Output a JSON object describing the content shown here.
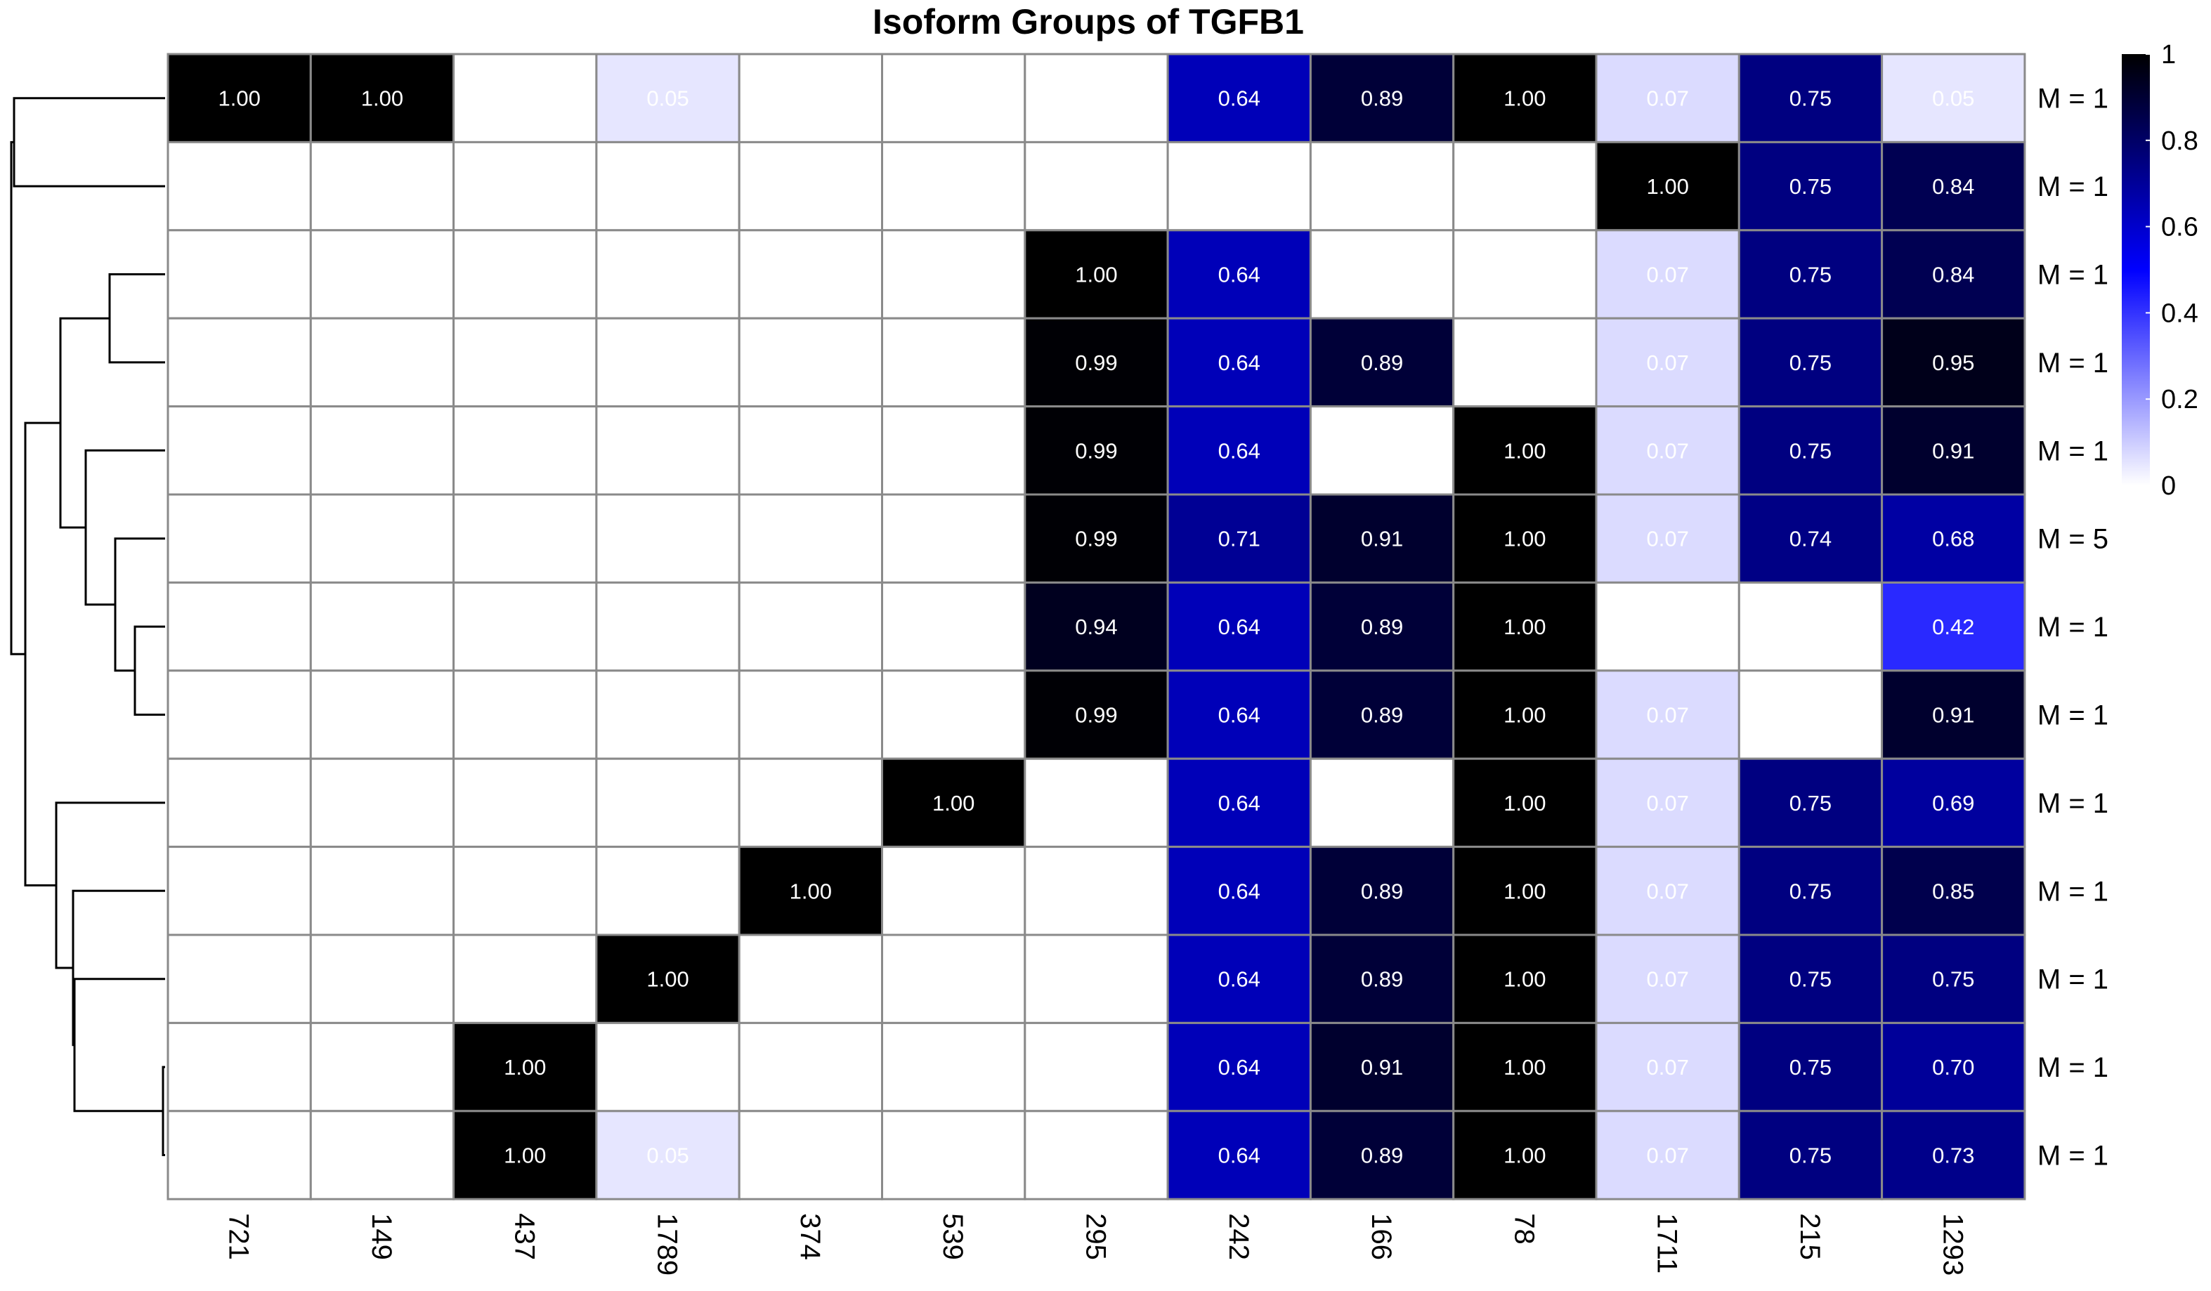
{
  "chart_data": {
    "type": "heatmap",
    "title": "Isoform Groups of TGFB1",
    "columns": [
      "721",
      "149",
      "437",
      "1789",
      "374",
      "539",
      "295",
      "242",
      "166",
      "78",
      "1711",
      "215",
      "1293"
    ],
    "rows": [
      "M = 1",
      "M = 1",
      "M = 1",
      "M = 1",
      "M = 1",
      "M = 5",
      "M = 1",
      "M = 1",
      "M = 1",
      "M = 1",
      "M = 1",
      "M = 1",
      "M = 1"
    ],
    "values": [
      [
        1.0,
        1.0,
        null,
        0.05,
        null,
        null,
        null,
        0.64,
        0.89,
        1.0,
        0.07,
        0.75,
        0.05
      ],
      [
        null,
        null,
        null,
        null,
        null,
        null,
        null,
        null,
        null,
        null,
        1.0,
        0.75,
        0.84
      ],
      [
        null,
        null,
        null,
        null,
        null,
        null,
        1.0,
        0.64,
        null,
        null,
        0.07,
        0.75,
        0.84
      ],
      [
        null,
        null,
        null,
        null,
        null,
        null,
        0.99,
        0.64,
        0.89,
        null,
        0.07,
        0.75,
        0.95
      ],
      [
        null,
        null,
        null,
        null,
        null,
        null,
        0.99,
        0.64,
        null,
        1.0,
        0.07,
        0.75,
        0.91
      ],
      [
        null,
        null,
        null,
        null,
        null,
        null,
        0.99,
        0.71,
        0.91,
        1.0,
        0.07,
        0.74,
        0.68
      ],
      [
        null,
        null,
        null,
        null,
        null,
        null,
        0.94,
        0.64,
        0.89,
        1.0,
        null,
        null,
        0.42
      ],
      [
        null,
        null,
        null,
        null,
        null,
        null,
        0.99,
        0.64,
        0.89,
        1.0,
        0.07,
        null,
        0.91
      ],
      [
        null,
        null,
        null,
        null,
        null,
        1.0,
        null,
        0.64,
        null,
        1.0,
        0.07,
        0.75,
        0.69
      ],
      [
        null,
        null,
        null,
        null,
        1.0,
        null,
        null,
        0.64,
        0.89,
        1.0,
        0.07,
        0.75,
        0.85
      ],
      [
        null,
        null,
        null,
        1.0,
        null,
        null,
        null,
        0.64,
        0.89,
        1.0,
        0.07,
        0.75,
        0.75
      ],
      [
        null,
        null,
        1.0,
        null,
        null,
        null,
        null,
        0.64,
        0.91,
        1.0,
        0.07,
        0.75,
        0.7
      ],
      [
        null,
        null,
        1.0,
        0.05,
        null,
        null,
        null,
        0.64,
        0.89,
        1.0,
        0.07,
        0.75,
        0.73
      ]
    ],
    "value_format": "2 decimals",
    "color_scale": {
      "min": 0,
      "max": 1,
      "stops": [
        {
          "value": 0,
          "color": "#ffffff"
        },
        {
          "value": 0.5,
          "color": "#0000ff"
        },
        {
          "value": 1,
          "color": "#000000"
        }
      ]
    },
    "legend": {
      "placement": "top-right",
      "ticks": [
        "0",
        "0.2",
        "0.4",
        "0.6",
        "0.8",
        "1"
      ]
    },
    "row_dendrogram": true,
    "grid": true
  }
}
